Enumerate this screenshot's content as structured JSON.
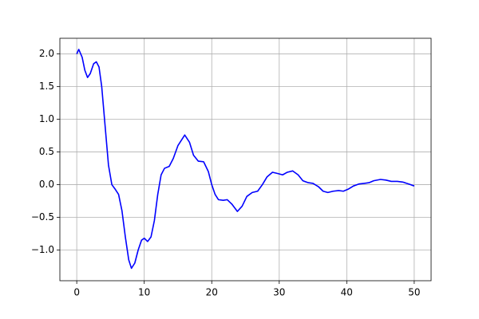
{
  "chart_data": {
    "type": "line",
    "x": [
      0,
      0.3,
      0.8,
      1.2,
      1.6,
      2.0,
      2.5,
      2.9,
      3.3,
      3.7,
      4.2,
      4.7,
      5.2,
      5.7,
      6.2,
      6.7,
      7.2,
      7.7,
      8.1,
      8.6,
      9.1,
      9.6,
      10.0,
      10.5,
      11.0,
      11.5,
      12.0,
      12.5,
      13.0,
      13.7,
      14.3,
      15.0,
      16.0,
      16.7,
      17.3,
      18.0,
      18.8,
      19.5,
      20.0,
      20.5,
      21.0,
      21.7,
      22.3,
      23.0,
      23.8,
      24.5,
      25.2,
      26.0,
      26.8,
      27.5,
      28.2,
      29.0,
      29.8,
      30.5,
      31.2,
      32.0,
      32.8,
      33.5,
      34.3,
      35.0,
      35.8,
      36.5,
      37.2,
      38.0,
      38.8,
      39.5,
      40.2,
      41.0,
      41.8,
      42.6,
      43.3,
      44.0,
      45.0,
      45.8,
      46.6,
      47.5,
      48.3,
      49.2,
      50.0
    ],
    "series": [
      {
        "color": "#0000ff",
        "values": [
          2.0,
          2.07,
          1.95,
          1.75,
          1.64,
          1.7,
          1.85,
          1.88,
          1.8,
          1.5,
          0.9,
          0.3,
          0.0,
          -0.07,
          -0.15,
          -0.4,
          -0.8,
          -1.15,
          -1.28,
          -1.2,
          -1.0,
          -0.85,
          -0.82,
          -0.87,
          -0.8,
          -0.55,
          -0.15,
          0.15,
          0.25,
          0.28,
          0.4,
          0.6,
          0.76,
          0.65,
          0.45,
          0.36,
          0.35,
          0.2,
          0.0,
          -0.15,
          -0.23,
          -0.24,
          -0.23,
          -0.3,
          -0.41,
          -0.33,
          -0.18,
          -0.12,
          -0.1,
          0.0,
          0.12,
          0.19,
          0.17,
          0.15,
          0.19,
          0.21,
          0.15,
          0.06,
          0.03,
          0.02,
          -0.03,
          -0.1,
          -0.12,
          -0.1,
          -0.09,
          -0.1,
          -0.07,
          -0.02,
          0.01,
          0.02,
          0.03,
          0.06,
          0.08,
          0.07,
          0.05,
          0.05,
          0.04,
          0.01,
          -0.02
        ]
      }
    ],
    "xlim": [
      -2.5,
      52.5
    ],
    "ylim": [
      -1.47,
      2.24
    ],
    "xticks": [
      0,
      10,
      20,
      30,
      40,
      50
    ],
    "yticks": [
      {
        "value": -1.0,
        "label": "−1.0"
      },
      {
        "value": -0.5,
        "label": "−0.5"
      },
      {
        "value": 0.0,
        "label": "0.0"
      },
      {
        "value": 0.5,
        "label": "0.5"
      },
      {
        "value": 1.0,
        "label": "1.0"
      },
      {
        "value": 1.5,
        "label": "1.5"
      },
      {
        "value": 2.0,
        "label": "2.0"
      }
    ],
    "grid": true
  }
}
